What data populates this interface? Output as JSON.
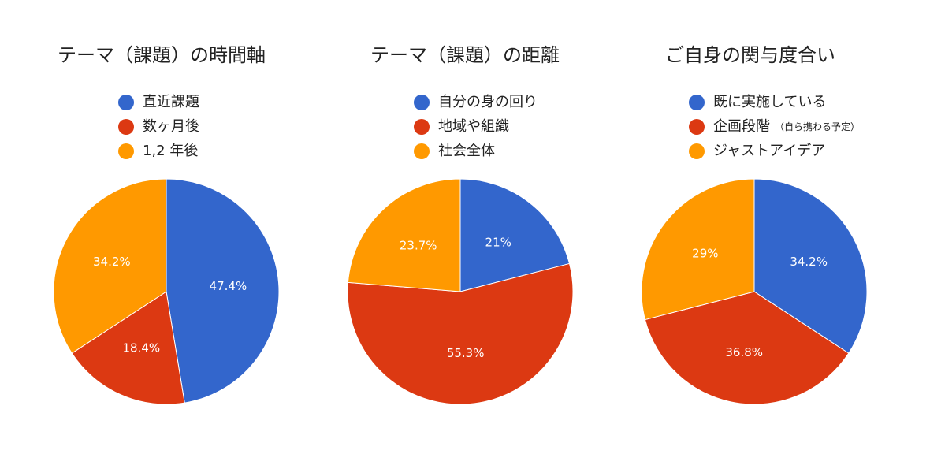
{
  "colors": {
    "blue": "#3366cc",
    "red": "#dc3912",
    "orange": "#ff9900"
  },
  "chart_data": [
    {
      "type": "pie",
      "title": "テーマ（課題）の時間軸",
      "legend_position": "top",
      "categories": [
        "直近課題",
        "数ヶ月後",
        "1,2 年後"
      ],
      "values": [
        47.4,
        18.4,
        34.2
      ],
      "labels": [
        "47.4%",
        "18.4%",
        "34.2%"
      ],
      "colors": [
        "#3366cc",
        "#dc3912",
        "#ff9900"
      ]
    },
    {
      "type": "pie",
      "title": "テーマ（課題）の距離",
      "legend_position": "top",
      "categories": [
        "自分の身の回り",
        "地域や組織",
        "社会全体"
      ],
      "values": [
        21.0,
        55.3,
        23.7
      ],
      "labels": [
        "21%",
        "55.3%",
        "23.7%"
      ],
      "colors": [
        "#3366cc",
        "#dc3912",
        "#ff9900"
      ]
    },
    {
      "type": "pie",
      "title": "ご自身の関与度合い",
      "legend_position": "top",
      "categories": [
        "既に実施している",
        "企画段階",
        "ジャストアイデア"
      ],
      "category_notes": [
        "",
        "（自ら携わる予定）",
        ""
      ],
      "values": [
        34.2,
        36.8,
        29.0
      ],
      "labels": [
        "34.2%",
        "36.8%",
        "29%"
      ],
      "colors": [
        "#3366cc",
        "#dc3912",
        "#ff9900"
      ]
    }
  ]
}
